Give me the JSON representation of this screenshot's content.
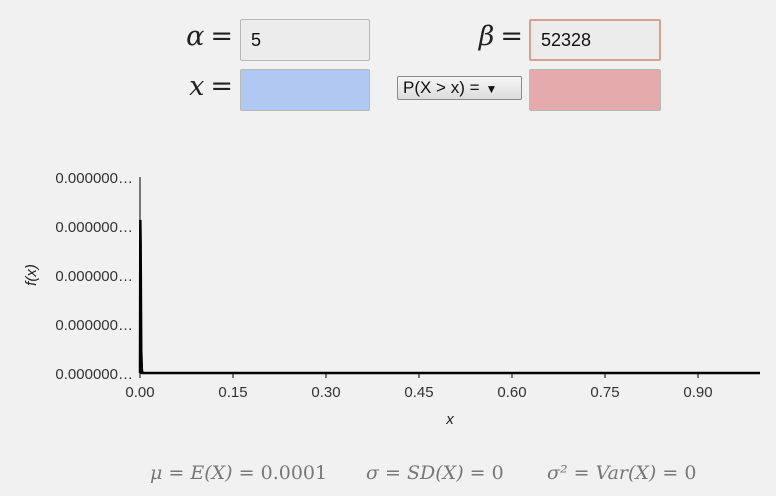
{
  "params": {
    "alpha_symbol": "α",
    "beta_symbol": "β",
    "x_symbol": "x",
    "equals": "=",
    "alpha_value": "5",
    "beta_value": "52328",
    "x_value": "",
    "prob_value": ""
  },
  "prob_selector": {
    "selected": "P(X > x) =",
    "arrow": "▼"
  },
  "chart_data": {
    "type": "line",
    "ylabel": "f(x)",
    "xlabel": "x",
    "x_ticks": [
      "0.00",
      "0.15",
      "0.30",
      "0.45",
      "0.60",
      "0.75",
      "0.90"
    ],
    "x_tick_values": [
      0.0,
      0.15,
      0.3,
      0.45,
      0.6,
      0.75,
      0.9
    ],
    "y_ticks": [
      "0.000000…",
      "0.000000…",
      "0.000000…",
      "0.000000…",
      "0.000000…"
    ],
    "xlim": [
      0,
      1.0
    ],
    "ylim": [
      0,
      1.0
    ],
    "series": [
      {
        "x": [
          0.0,
          0.0005,
          0.001,
          0.0015,
          0.002,
          0.003,
          0.004,
          1.0
        ],
        "y": [
          0.0,
          0.86,
          0.74,
          0.42,
          0.12,
          0.02,
          0.0,
          0.0
        ]
      }
    ],
    "grid": false
  },
  "stats": {
    "mu": {
      "lhs": "μ",
      "expr": "E(X)",
      "value": "0.0001"
    },
    "sigma": {
      "lhs": "σ",
      "expr": "SD(X)",
      "value": "0"
    },
    "var": {
      "lhs": "σ²",
      "expr": "Var(X)",
      "value": "0"
    }
  }
}
